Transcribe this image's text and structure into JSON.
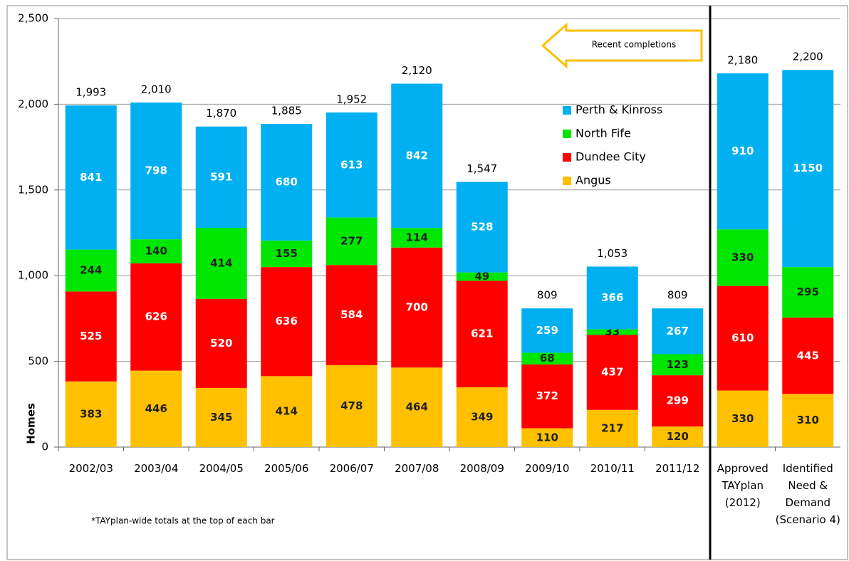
{
  "chart_data": {
    "type": "stacked_bar",
    "y_label": "Homes",
    "categories": [
      "2002/03",
      "2003/04",
      "2004/05",
      "2005/06",
      "2006/07",
      "2007/08",
      "2008/09",
      "2009/10",
      "2010/11",
      "2011/12",
      "Approved TAYplan (2012)",
      "Identified Need & Demand (Scenario 4)"
    ],
    "series": [
      {
        "name": "Angus",
        "color": "#ffc000",
        "values": [
          383,
          446,
          345,
          414,
          478,
          464,
          349,
          110,
          217,
          120,
          330,
          310
        ]
      },
      {
        "name": "Dundee City",
        "color": "#ff0000",
        "values": [
          525,
          626,
          520,
          636,
          584,
          700,
          621,
          372,
          437,
          299,
          610,
          445
        ]
      },
      {
        "name": "North Fife",
        "color": "#00e600",
        "values": [
          244,
          140,
          414,
          155,
          277,
          114,
          49,
          68,
          33,
          123,
          330,
          295
        ]
      },
      {
        "name": "Perth & Kinross",
        "color": "#00b0f0",
        "values": [
          841,
          798,
          591,
          680,
          613,
          842,
          528,
          259,
          366,
          267,
          910,
          1150
        ]
      }
    ],
    "totals": {
      "values": [
        1993,
        2010,
        1870,
        1885,
        1952,
        2120,
        1547,
        809,
        1053,
        809,
        2180,
        2200
      ],
      "value_labels": [
        "1,993",
        "2,010",
        "1,870",
        "1,885",
        "1,952",
        "2,120",
        "1,547",
        "809",
        "1,053",
        "809",
        "2,180",
        "2,200"
      ]
    },
    "ylim": [
      0,
      2500
    ],
    "yticks": [
      0,
      500,
      {
        "value": 1000,
        "label": "1,000"
      },
      {
        "value": 1500,
        "label": "1,500"
      },
      {
        "value": 2000,
        "label": "2,000"
      },
      {
        "value": 2500,
        "label": "2,500"
      }
    ],
    "grid": true,
    "annotations": [
      "Recent completions",
      "*TAYplan-wide totals at the top of each bar"
    ]
  }
}
